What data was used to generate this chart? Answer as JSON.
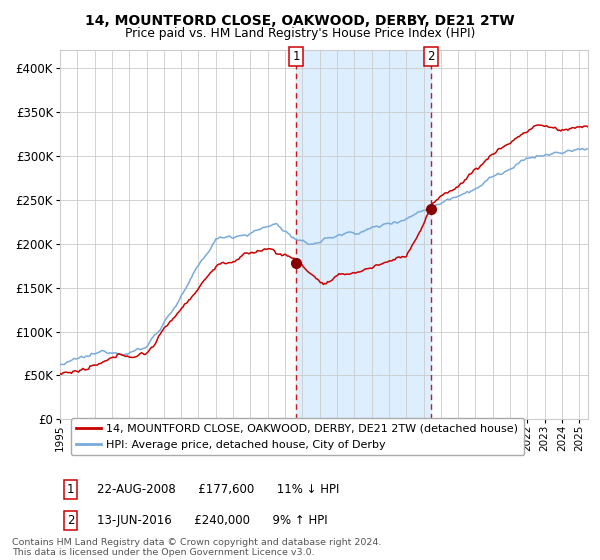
{
  "title_line1": "14, MOUNTFORD CLOSE, OAKWOOD, DERBY, DE21 2TW",
  "title_line2": "Price paid vs. HM Land Registry's House Price Index (HPI)",
  "ylim": [
    0,
    420000
  ],
  "xlim_start": 1995.0,
  "xlim_end": 2025.5,
  "sale1_date": 2008.644,
  "sale1_price": 177600,
  "sale1_label": "1",
  "sale1_date_str": "22-AUG-2008",
  "sale1_price_str": "£177,600",
  "sale1_hpi_str": "11% ↓ HPI",
  "sale2_date": 2016.442,
  "sale2_price": 240000,
  "sale2_label": "2",
  "sale2_date_str": "13-JUN-2016",
  "sale2_price_str": "£240,000",
  "sale2_hpi_str": "9% ↑ HPI",
  "legend_entry1": "14, MOUNTFORD CLOSE, OAKWOOD, DERBY, DE21 2TW (detached house)",
  "legend_entry2": "HPI: Average price, detached house, City of Derby",
  "hpi_color": "#7aabdb",
  "price_color": "#cc0000",
  "sale_marker_color": "#880000",
  "highlight_color": "#ddeeff",
  "grid_color": "#cccccc",
  "background_color": "#ffffff",
  "footer_text": "Contains HM Land Registry data © Crown copyright and database right 2024.\nThis data is licensed under the Open Government Licence v3.0.",
  "yticks": [
    0,
    50000,
    100000,
    150000,
    200000,
    250000,
    300000,
    350000,
    400000
  ],
  "ytick_labels": [
    "£0",
    "£50K",
    "£100K",
    "£150K",
    "£200K",
    "£250K",
    "£300K",
    "£350K",
    "£400K"
  ],
  "xticks": [
    1995,
    1996,
    1997,
    1998,
    1999,
    2000,
    2001,
    2002,
    2003,
    2004,
    2005,
    2006,
    2007,
    2008,
    2009,
    2010,
    2011,
    2012,
    2013,
    2014,
    2015,
    2016,
    2017,
    2018,
    2019,
    2020,
    2021,
    2022,
    2023,
    2024,
    2025
  ]
}
